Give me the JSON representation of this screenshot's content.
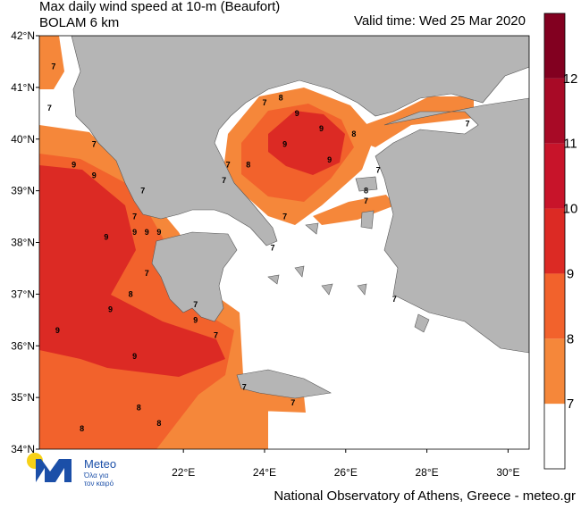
{
  "header": {
    "title": "Max daily wind speed at 10-m (Beaufort)",
    "model": "BOLAM 6 km",
    "valid_time": "Valid time: Wed 25 Mar 2020"
  },
  "map": {
    "lonlim": [
      18.45,
      30.52
    ],
    "latlim": [
      34,
      42
    ],
    "lat_ticks": [
      {
        "value": 34,
        "label": "34°N"
      },
      {
        "value": 35,
        "label": "35°N"
      },
      {
        "value": 36,
        "label": "36°N"
      },
      {
        "value": 37,
        "label": "37°N"
      },
      {
        "value": 38,
        "label": "38°N"
      },
      {
        "value": 39,
        "label": "39°N"
      },
      {
        "value": 40,
        "label": "40°N"
      },
      {
        "value": 41,
        "label": "41°N"
      },
      {
        "value": 42,
        "label": "42°N"
      }
    ],
    "lon_ticks": [
      {
        "value": 22,
        "label": "22°E"
      },
      {
        "value": 24,
        "label": "24°E"
      },
      {
        "value": 26,
        "label": "26°E"
      },
      {
        "value": 28,
        "label": "28°E"
      },
      {
        "value": 30,
        "label": "30°E"
      }
    ],
    "contour_labels": [
      {
        "value": 7,
        "lon": 18.8,
        "lat": 41.4
      },
      {
        "value": 7,
        "lon": 18.7,
        "lat": 40.6
      },
      {
        "value": 7,
        "lon": 19.8,
        "lat": 39.9
      },
      {
        "value": 9,
        "lon": 19.3,
        "lat": 39.5
      },
      {
        "value": 9,
        "lon": 19.8,
        "lat": 39.3
      },
      {
        "value": 9,
        "lon": 20.1,
        "lat": 38.1
      },
      {
        "value": 7,
        "lon": 20.8,
        "lat": 38.5
      },
      {
        "value": 7,
        "lon": 21.0,
        "lat": 39.0
      },
      {
        "value": 9,
        "lon": 20.8,
        "lat": 38.2
      },
      {
        "value": 9,
        "lon": 21.1,
        "lat": 38.2
      },
      {
        "value": 9,
        "lon": 21.4,
        "lat": 38.2
      },
      {
        "value": 7,
        "lon": 21.1,
        "lat": 37.4
      },
      {
        "value": 8,
        "lon": 20.7,
        "lat": 37.0
      },
      {
        "value": 9,
        "lon": 20.2,
        "lat": 36.7
      },
      {
        "value": 9,
        "lon": 18.9,
        "lat": 36.3
      },
      {
        "value": 9,
        "lon": 20.8,
        "lat": 35.8
      },
      {
        "value": 7,
        "lon": 22.3,
        "lat": 36.8
      },
      {
        "value": 9,
        "lon": 22.3,
        "lat": 36.5
      },
      {
        "value": 7,
        "lon": 22.8,
        "lat": 36.2
      },
      {
        "value": 8,
        "lon": 20.9,
        "lat": 34.8
      },
      {
        "value": 8,
        "lon": 21.4,
        "lat": 34.5
      },
      {
        "value": 8,
        "lon": 19.5,
        "lat": 34.4
      },
      {
        "value": 7,
        "lon": 23.5,
        "lat": 35.2
      },
      {
        "value": 7,
        "lon": 24.7,
        "lat": 34.9
      },
      {
        "value": 7,
        "lon": 24.0,
        "lat": 40.7
      },
      {
        "value": 8,
        "lon": 24.4,
        "lat": 40.8
      },
      {
        "value": 9,
        "lon": 24.8,
        "lat": 40.5
      },
      {
        "value": 9,
        "lon": 25.4,
        "lat": 40.2
      },
      {
        "value": 9,
        "lon": 24.5,
        "lat": 39.9
      },
      {
        "value": 9,
        "lon": 25.6,
        "lat": 39.6
      },
      {
        "value": 8,
        "lon": 26.2,
        "lat": 40.1
      },
      {
        "value": 7,
        "lon": 23.1,
        "lat": 39.5
      },
      {
        "value": 8,
        "lon": 23.6,
        "lat": 39.5
      },
      {
        "value": 7,
        "lon": 23.0,
        "lat": 39.2
      },
      {
        "value": 7,
        "lon": 24.5,
        "lat": 38.5
      },
      {
        "value": 7,
        "lon": 24.2,
        "lat": 37.9
      },
      {
        "value": 7,
        "lon": 26.8,
        "lat": 39.4
      },
      {
        "value": 8,
        "lon": 26.5,
        "lat": 39.0
      },
      {
        "value": 7,
        "lon": 26.5,
        "lat": 38.8
      },
      {
        "value": 7,
        "lon": 29.0,
        "lat": 40.3
      },
      {
        "value": 7,
        "lon": 27.2,
        "lat": 36.9
      }
    ]
  },
  "colorbar": {
    "lim": [
      6,
      13
    ],
    "ticks": [
      7,
      8,
      9,
      10,
      11,
      12
    ],
    "colors": [
      "#ffffff",
      "#f5873a",
      "#f2622c",
      "#dc2a24",
      "#c8142a",
      "#a80a26",
      "#820020"
    ]
  },
  "logo": {
    "name": "Meteo",
    "slogan_1": "Όλα για",
    "slogan_2": "τον καιρό"
  },
  "footer": "National Observatory of Athens, Greece - meteo.gr"
}
